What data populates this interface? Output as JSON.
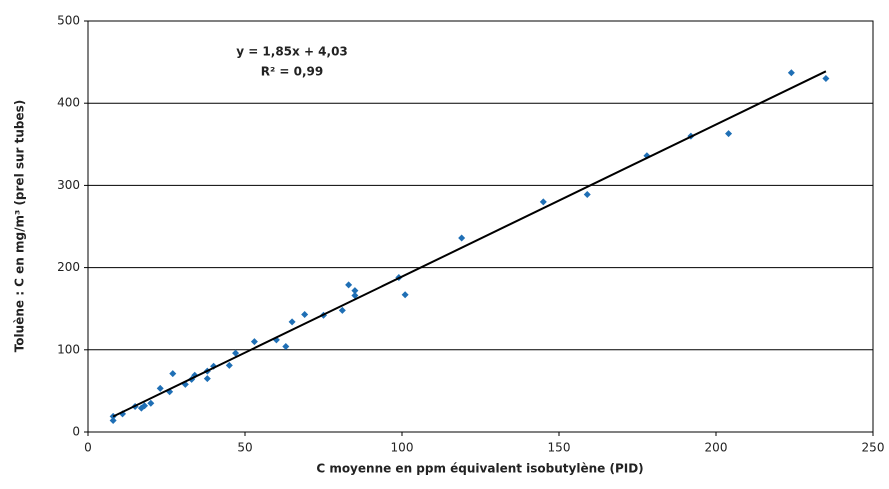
{
  "chart_data": {
    "type": "scatter",
    "x_label": "C moyenne en ppm équivalent isobutylène (PID)",
    "y_label": "Toluène : C en mg/m³ (prel sur tubes)",
    "x": [
      8,
      8,
      11,
      15,
      17,
      18,
      20,
      23,
      26,
      27,
      31,
      33,
      34,
      38,
      38,
      40,
      45,
      47,
      53,
      60,
      63,
      65,
      69,
      75,
      81,
      83,
      85,
      85,
      99,
      101,
      119,
      145,
      159,
      178,
      192,
      204,
      224,
      235
    ],
    "values": [
      14,
      19,
      22,
      31,
      29,
      32,
      35,
      53,
      49,
      71,
      58,
      64,
      69,
      65,
      74,
      80,
      81,
      96,
      110,
      112,
      104,
      134,
      143,
      142,
      148,
      179,
      172,
      166,
      188,
      167,
      236,
      280,
      289,
      336,
      360,
      363,
      437,
      430
    ],
    "color": "#1f6fb5",
    "trendline": {
      "slope": 1.85,
      "intercept": 4.03,
      "color": "#000000",
      "label": "y = 1,85x + 4,03",
      "r2_label": "R² = 0,99"
    },
    "xlim": [
      0,
      250
    ],
    "xticks": [
      0,
      50,
      100,
      150,
      200,
      250
    ],
    "ylim": [
      0,
      500
    ],
    "yticks": [
      0,
      100,
      200,
      300,
      400,
      500
    ],
    "grid": true
  }
}
